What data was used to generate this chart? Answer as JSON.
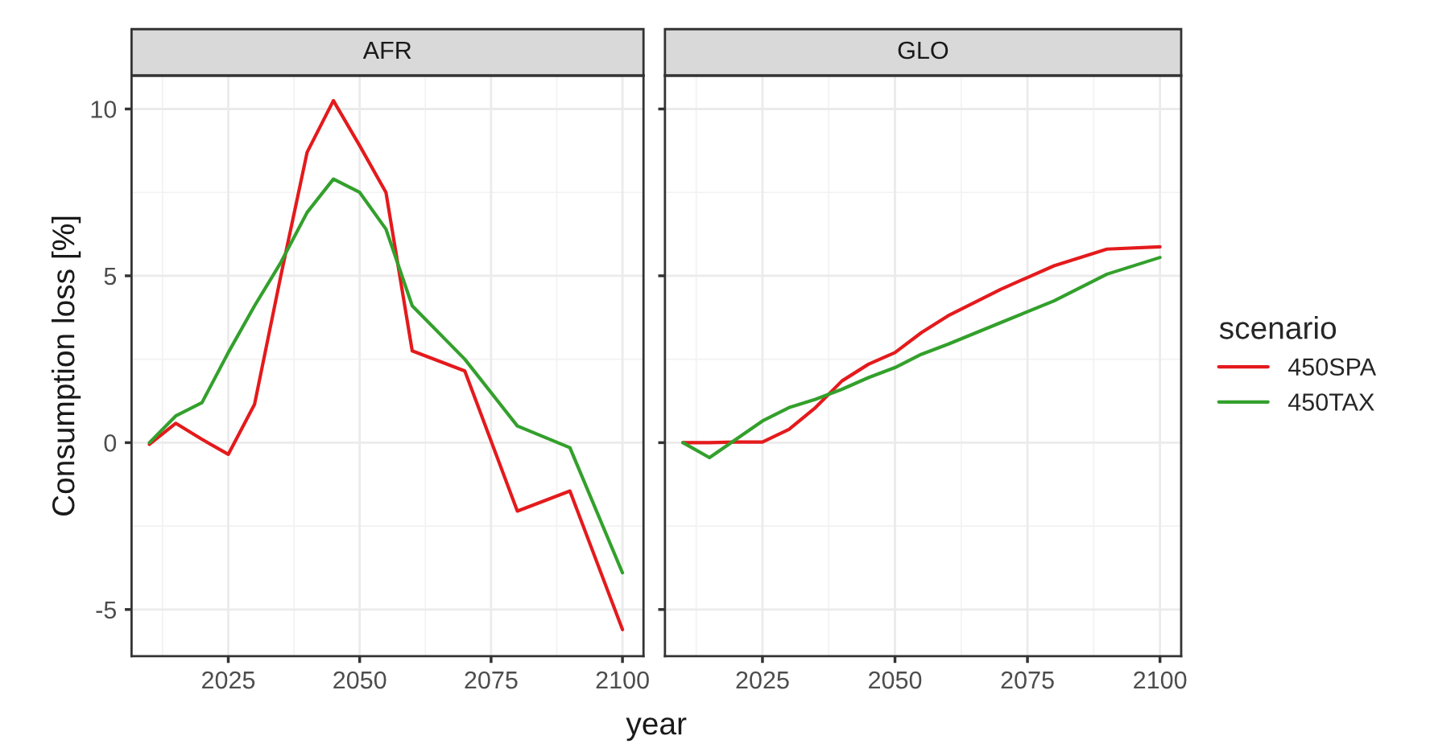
{
  "chart_data": [
    {
      "type": "line",
      "title": "AFR",
      "xlabel": "year",
      "ylabel": "Consumption loss [%]",
      "x": [
        2010,
        2015,
        2020,
        2025,
        2030,
        2035,
        2040,
        2045,
        2050,
        2055,
        2060,
        2070,
        2080,
        2090,
        2100
      ],
      "series": [
        {
          "color": "#e41a1c",
          "values": [
            -0.05,
            0.58,
            0.1,
            -0.35,
            1.15,
            5.0,
            8.7,
            10.25,
            8.9,
            7.5,
            2.75,
            2.15,
            -2.05,
            -1.45,
            -5.6
          ]
        },
        {
          "color": "#33a02c",
          "values": [
            0,
            0.8,
            1.2,
            2.7,
            4.1,
            5.4,
            6.9,
            7.9,
            7.5,
            6.4,
            4.1,
            2.5,
            0.5,
            -0.15,
            -3.9
          ]
        }
      ],
      "xlim": [
        2006.6,
        2104
      ],
      "xticks": [
        2025,
        2050,
        2075,
        2100
      ],
      "ylim": [
        -6.4,
        11.0
      ],
      "yticks": [
        -5,
        0,
        5,
        10
      ],
      "grid": true
    },
    {
      "type": "line",
      "title": "GLO",
      "legend_title": "scenario",
      "x": [
        2010,
        2015,
        2020,
        2025,
        2030,
        2035,
        2040,
        2045,
        2050,
        2055,
        2060,
        2070,
        2080,
        2090,
        2100
      ],
      "series": [
        {
          "name": "450SPA",
          "color": "#e41a1c",
          "values": [
            0,
            0,
            0.02,
            0.02,
            0.4,
            1.05,
            1.85,
            2.35,
            2.7,
            3.3,
            3.8,
            4.6,
            5.3,
            5.8,
            5.87
          ]
        },
        {
          "name": "450TAX",
          "color": "#33a02c",
          "values": [
            0,
            -0.45,
            0.1,
            0.65,
            1.05,
            1.3,
            1.6,
            1.95,
            2.25,
            2.65,
            2.95,
            3.6,
            4.25,
            5.05,
            5.55
          ]
        }
      ],
      "xlim": [
        2006.6,
        2104
      ],
      "xticks": [
        2025,
        2050,
        2075,
        2100
      ],
      "ylim": [
        -6.4,
        11.0
      ],
      "yticks": [
        -5,
        0,
        5,
        10
      ],
      "grid": true,
      "legend": "right",
      "tick_labels": "x"
    }
  ]
}
